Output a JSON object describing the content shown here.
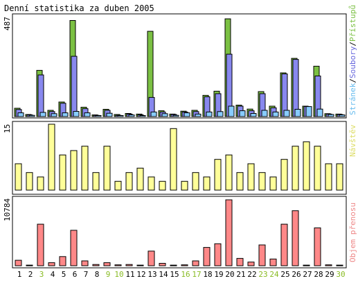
{
  "title": "Denní statistika za duben 2005",
  "colors": {
    "green": "#7bc043",
    "blue": "#8888ee",
    "lightblue": "#88ccff",
    "yellow": "#ffff99",
    "red": "#ff8888",
    "weekend_label": "#88bb22",
    "label_green": "#7bc043",
    "label_blue": "#6666dd",
    "label_lightblue": "#66bbee",
    "label_yellow": "#dddd66",
    "label_red": "#ee8888"
  },
  "chart_data": [
    {
      "type": "bar",
      "panel": "top",
      "ymax_label": "487",
      "ylim": [
        0,
        487
      ],
      "series_label_parts": [
        "Stránek",
        "/",
        "Soubory",
        "/",
        "Přístupů"
      ],
      "categories": [
        "1",
        "2",
        "3",
        "4",
        "5",
        "6",
        "7",
        "8",
        "9",
        "10",
        "11",
        "12",
        "13",
        "14",
        "15",
        "16",
        "17",
        "18",
        "19",
        "20",
        "21",
        "22",
        "23",
        "24",
        "25",
        "26",
        "27",
        "28",
        "29",
        "30"
      ],
      "series": [
        {
          "name": "Přístupů",
          "values": [
            40,
            10,
            222,
            30,
            70,
            462,
            45,
            8,
            35,
            10,
            15,
            12,
            410,
            28,
            12,
            26,
            30,
            102,
            122,
            470,
            55,
            36,
            120,
            50,
            210,
            280,
            50,
            242,
            14,
            12
          ]
        },
        {
          "name": "Soubory",
          "values": [
            34,
            8,
            200,
            24,
            64,
            290,
            38,
            6,
            30,
            6,
            12,
            8,
            92,
            22,
            10,
            22,
            24,
            95,
            110,
            300,
            50,
            28,
            110,
            42,
            205,
            275,
            48,
            195,
            12,
            10
          ]
        },
        {
          "name": "Stránek",
          "values": [
            18,
            6,
            20,
            14,
            18,
            25,
            18,
            5,
            16,
            5,
            8,
            5,
            22,
            14,
            6,
            18,
            12,
            22,
            24,
            50,
            28,
            15,
            30,
            22,
            30,
            35,
            48,
            36,
            10,
            8
          ]
        }
      ]
    },
    {
      "type": "bar",
      "panel": "middle",
      "ymax_label": "15",
      "ylim": [
        0,
        15
      ],
      "series_label": "Návštěv",
      "categories": [
        "1",
        "2",
        "3",
        "4",
        "5",
        "6",
        "7",
        "8",
        "9",
        "10",
        "11",
        "12",
        "13",
        "14",
        "15",
        "16",
        "17",
        "18",
        "19",
        "20",
        "21",
        "22",
        "23",
        "24",
        "25",
        "26",
        "27",
        "28",
        "29",
        "30"
      ],
      "series": [
        {
          "name": "Návštěv",
          "values": [
            6,
            4,
            3,
            15,
            8,
            9,
            10,
            4,
            10,
            2,
            4,
            5,
            3,
            2,
            14,
            2,
            4,
            3,
            7,
            8,
            4,
            6,
            4,
            3,
            7,
            10,
            11,
            10,
            6,
            6
          ]
        }
      ]
    },
    {
      "type": "bar",
      "panel": "bottom",
      "ymax_label": "10784",
      "ylim": [
        0,
        10784
      ],
      "series_label": "Objem přenosu",
      "categories": [
        "1",
        "2",
        "3",
        "4",
        "5",
        "6",
        "7",
        "8",
        "9",
        "10",
        "11",
        "12",
        "13",
        "14",
        "15",
        "16",
        "17",
        "18",
        "19",
        "20",
        "21",
        "22",
        "23",
        "24",
        "25",
        "26",
        "27",
        "28",
        "29",
        "30"
      ],
      "series": [
        {
          "name": "Objem přenosu",
          "values": [
            900,
            100,
            6800,
            500,
            1500,
            5800,
            800,
            200,
            500,
            150,
            200,
            100,
            2400,
            400,
            100,
            150,
            800,
            3000,
            3600,
            10784,
            1200,
            600,
            3400,
            1100,
            6800,
            9000,
            100,
            6200,
            150,
            100
          ]
        }
      ]
    }
  ],
  "x_labels": {
    "weekdays": [
      "1",
      "2",
      "4",
      "5",
      "6",
      "7",
      "8",
      "11",
      "12",
      "13",
      "14",
      "15",
      "18",
      "19",
      "20",
      "21",
      "22",
      "25",
      "26",
      "27",
      "28",
      "29"
    ],
    "weekends": [
      "3",
      "9",
      "10",
      "16",
      "17",
      "23",
      "24",
      "30"
    ]
  }
}
